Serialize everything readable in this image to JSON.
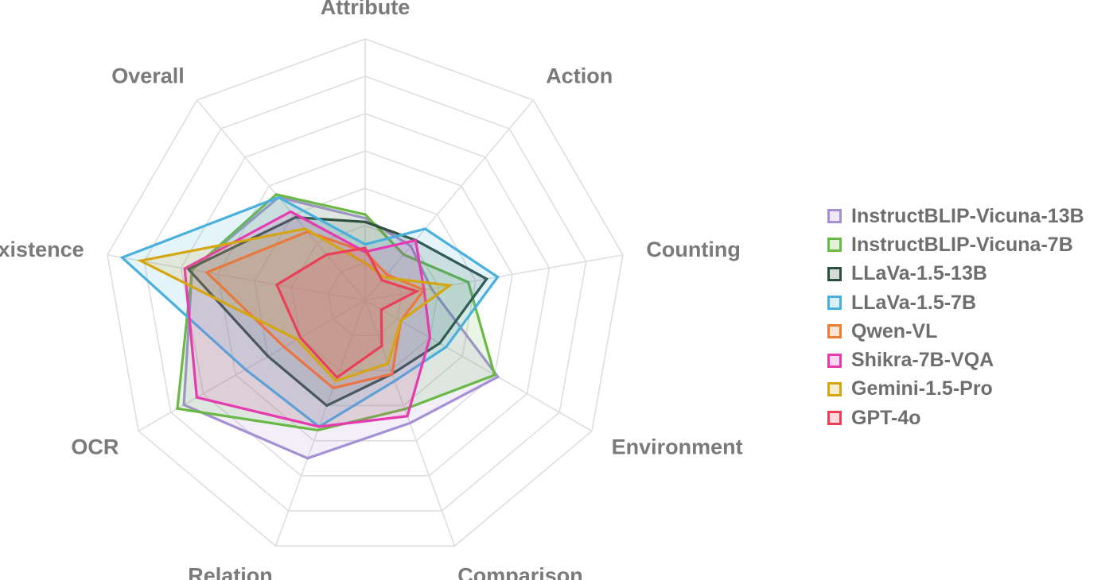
{
  "chart_data": {
    "type": "radar",
    "axes": [
      "Attribute",
      "Action",
      "Counting",
      "Environment",
      "Comparison",
      "Relation",
      "OCR",
      "Existence",
      "Overall"
    ],
    "rmax": 7,
    "grid_levels": 7,
    "legend_position": "right",
    "series": [
      {
        "name": "InstructBLIP-Vicuna-13B",
        "color": "#a58fd6",
        "values": [
          2.2,
          1.9,
          1.8,
          4.1,
          3.5,
          4.5,
          5.6,
          4.7,
          3.6
        ]
      },
      {
        "name": "InstructBLIP-Vicuna-7B",
        "color": "#6ab845",
        "values": [
          2.3,
          1.6,
          2.8,
          4.0,
          3.1,
          3.7,
          5.8,
          4.7,
          3.7
        ]
      },
      {
        "name": "LLaVa-1.5-13B",
        "color": "#2d4f3d",
        "values": [
          2.1,
          2.1,
          3.3,
          2.3,
          2.1,
          3.0,
          3.0,
          4.8,
          2.9
        ]
      },
      {
        "name": "LLaVa-1.5-7B",
        "color": "#49b0de",
        "values": [
          1.5,
          2.5,
          3.6,
          2.5,
          2.3,
          3.6,
          3.7,
          6.6,
          3.6
        ]
      },
      {
        "name": "Qwen-VL",
        "color": "#ed7d31",
        "values": [
          1.3,
          0.9,
          1.6,
          1.1,
          2.1,
          2.5,
          2.5,
          4.3,
          2.4
        ]
      },
      {
        "name": "Shikra-7B-VQA",
        "color": "#e53ab0",
        "values": [
          1.3,
          2.1,
          1.6,
          2.0,
          3.3,
          3.6,
          5.2,
          4.9,
          3.1
        ]
      },
      {
        "name": "Gemini-1.5-Pro",
        "color": "#d4a612",
        "values": [
          1.0,
          0.8,
          2.3,
          1.1,
          1.8,
          2.3,
          2.1,
          6.1,
          2.5
        ]
      },
      {
        "name": "GPT-4o",
        "color": "#e94057",
        "values": [
          1.4,
          0.7,
          1.4,
          0.5,
          1.3,
          2.2,
          2.0,
          2.4,
          1.6
        ]
      }
    ]
  }
}
